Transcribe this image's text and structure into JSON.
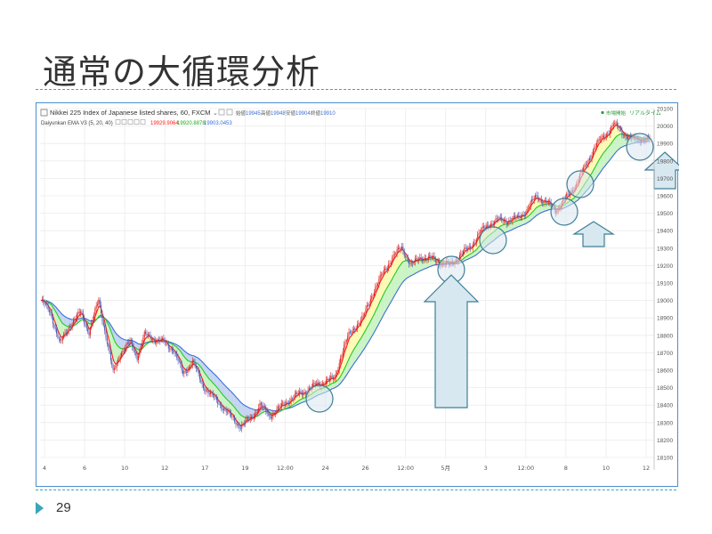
{
  "slide": {
    "title": "通常の大循環分析",
    "page_number": "29"
  },
  "colors": {
    "rule": "#3aa6b9",
    "frame": "#4a8fd0",
    "up": "#dd2222",
    "down": "#4e58b0",
    "ema_short": "#ff1a1a",
    "ema_mid": "#22cc22",
    "ema_long": "#3d6fd6",
    "fill_up": "#fbf8a6",
    "fill_mid": "#bff2b8",
    "fill_down": "#b9cbef",
    "annotation": "#d8e8f0",
    "annotation_border": "#3f7f96"
  },
  "chart_data": {
    "type": "candlestick",
    "title": "Nikkei 225 Index of Japanese listed shares, 60, FXCM",
    "header_fields": [
      {
        "label": "始値",
        "value": "19945"
      },
      {
        "label": "高値",
        "value": "19948"
      },
      {
        "label": "安値",
        "value": "19904"
      },
      {
        "label": "終値",
        "value": "19910"
      }
    ],
    "indicator": {
      "name": "Daiyunkan EMA V3 (5, 20, 40)",
      "values": [
        "19929.9064",
        "19920.8878",
        "19903.0453"
      ],
      "periods": [
        5,
        20,
        40
      ]
    },
    "status_labels": [
      "市場開始",
      "リアルタイム"
    ],
    "ylim": [
      18100,
      20100
    ],
    "y_ticks": [
      18100,
      18200,
      18300,
      18400,
      18500,
      18600,
      18700,
      18800,
      18900,
      19000,
      19100,
      19200,
      19300,
      19400,
      19500,
      19600,
      19700,
      19800,
      19900,
      20000,
      20100
    ],
    "x_ticks": [
      "4",
      "6",
      "10",
      "12",
      "17",
      "19",
      "12:00",
      "24",
      "26",
      "12:00",
      "5月",
      "3",
      "12:00",
      "8",
      "10",
      "12"
    ],
    "price_path": [
      [
        0,
        19000
      ],
      [
        8,
        18930
      ],
      [
        16,
        18750
      ],
      [
        24,
        18860
      ],
      [
        33,
        18930
      ],
      [
        40,
        18820
      ],
      [
        48,
        19000
      ],
      [
        54,
        18800
      ],
      [
        60,
        18580
      ],
      [
        66,
        18700
      ],
      [
        74,
        18760
      ],
      [
        80,
        18680
      ],
      [
        86,
        18800
      ],
      [
        94,
        18780
      ],
      [
        102,
        18760
      ],
      [
        110,
        18720
      ],
      [
        118,
        18580
      ],
      [
        126,
        18650
      ],
      [
        134,
        18520
      ],
      [
        142,
        18450
      ],
      [
        150,
        18400
      ],
      [
        158,
        18330
      ],
      [
        166,
        18280
      ],
      [
        174,
        18320
      ],
      [
        182,
        18400
      ],
      [
        190,
        18340
      ],
      [
        198,
        18380
      ],
      [
        206,
        18430
      ],
      [
        214,
        18460
      ],
      [
        222,
        18490
      ],
      [
        230,
        18520
      ],
      [
        238,
        18540
      ],
      [
        244,
        18550
      ],
      [
        250,
        18700
      ],
      [
        256,
        18800
      ],
      [
        262,
        18860
      ],
      [
        268,
        18900
      ],
      [
        276,
        19050
      ],
      [
        284,
        19150
      ],
      [
        292,
        19250
      ],
      [
        300,
        19300
      ],
      [
        308,
        19200
      ],
      [
        316,
        19250
      ],
      [
        324,
        19240
      ],
      [
        332,
        19220
      ],
      [
        340,
        19200
      ],
      [
        348,
        19260
      ],
      [
        356,
        19300
      ],
      [
        364,
        19380
      ],
      [
        372,
        19440
      ],
      [
        380,
        19460
      ],
      [
        388,
        19460
      ],
      [
        396,
        19470
      ],
      [
        404,
        19520
      ],
      [
        412,
        19600
      ],
      [
        420,
        19560
      ],
      [
        428,
        19520
      ],
      [
        436,
        19580
      ],
      [
        444,
        19660
      ],
      [
        452,
        19760
      ],
      [
        460,
        19880
      ],
      [
        468,
        19940
      ],
      [
        476,
        20010
      ],
      [
        484,
        19960
      ],
      [
        492,
        19920
      ],
      [
        500,
        19930
      ],
      [
        506,
        19920
      ]
    ]
  }
}
